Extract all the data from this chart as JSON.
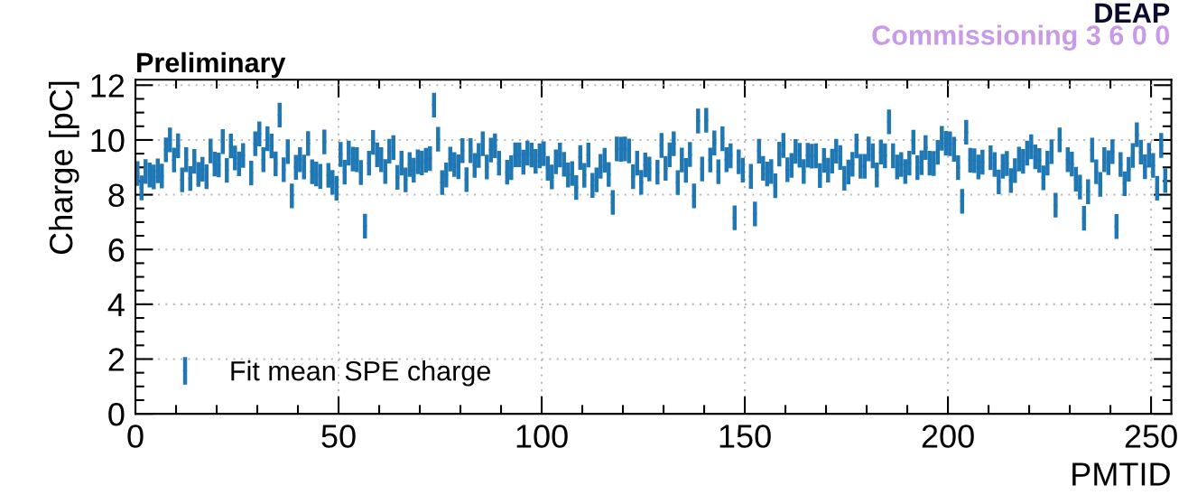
{
  "chart_data": {
    "type": "scatter",
    "title": "Preliminary",
    "xlabel": "PMTID",
    "ylabel": "Charge [pC]",
    "annotations": [
      "DEAP",
      "Commissioning 3 6 0 0"
    ],
    "x": [
      0.5,
      1.5,
      2.5,
      3.5,
      4.5,
      5.5,
      6.5,
      7.5,
      8.5,
      9.5,
      10.5,
      11.5,
      12.5,
      13.5,
      14.5,
      15.5,
      16.5,
      17.5,
      18.5,
      19.5,
      20.5,
      21.5,
      22.5,
      23.5,
      24.5,
      25.5,
      26.5,
      27.5,
      28.5,
      29.5,
      30.5,
      31.5,
      32.5,
      33.5,
      34.5,
      35.5,
      36.5,
      37.5,
      38.5,
      39.5,
      40.5,
      41.5,
      42.5,
      43.5,
      44.5,
      45.5,
      46.5,
      47.5,
      48.5,
      49.5,
      50.5,
      51.5,
      52.5,
      53.5,
      54.5,
      55.5,
      56.5,
      57.5,
      58.5,
      59.5,
      60.5,
      61.5,
      62.5,
      63.5,
      64.5,
      65.5,
      66.5,
      67.5,
      68.5,
      69.5,
      70.5,
      71.5,
      72.5,
      73.5,
      74.5,
      75.5,
      76.5,
      77.5,
      78.5,
      79.5,
      80.5,
      81.5,
      82.5,
      83.5,
      84.5,
      85.5,
      86.5,
      87.5,
      88.5,
      89.5,
      90.5,
      91.5,
      92.5,
      93.5,
      94.5,
      95.5,
      96.5,
      97.5,
      98.5,
      99.5,
      100.5,
      101.5,
      102.5,
      103.5,
      104.5,
      105.5,
      106.5,
      107.5,
      108.5,
      109.5,
      110.5,
      111.5,
      112.5,
      113.5,
      114.5,
      115.5,
      116.5,
      117.5,
      118.5,
      119.5,
      120.5,
      121.5,
      122.5,
      123.5,
      124.5,
      125.5,
      126.5,
      127.5,
      128.5,
      129.5,
      130.5,
      131.5,
      132.5,
      133.5,
      134.5,
      135.5,
      136.5,
      137.5,
      138.5,
      139.5,
      140.5,
      141.5,
      142.5,
      143.5,
      144.5,
      145.5,
      146.5,
      147.5,
      148.5,
      149.5,
      150.5,
      151.5,
      152.5,
      153.5,
      154.5,
      155.5,
      156.5,
      157.5,
      158.5,
      159.5,
      160.5,
      161.5,
      162.5,
      163.5,
      164.5,
      165.5,
      166.5,
      167.5,
      168.5,
      169.5,
      170.5,
      171.5,
      172.5,
      173.5,
      174.5,
      175.5,
      176.5,
      177.5,
      178.5,
      179.5,
      180.5,
      181.5,
      182.5,
      183.5,
      184.5,
      185.5,
      186.5,
      187.5,
      188.5,
      189.5,
      190.5,
      191.5,
      192.5,
      193.5,
      194.5,
      195.5,
      196.5,
      197.5,
      198.5,
      199.5,
      200.5,
      201.5,
      202.5,
      203.5,
      204.5,
      205.5,
      206.5,
      207.5,
      208.5,
      209.5,
      210.5,
      211.5,
      212.5,
      213.5,
      214.5,
      215.5,
      216.5,
      217.5,
      218.5,
      219.5,
      220.5,
      221.5,
      222.5,
      223.5,
      224.5,
      225.5,
      226.5,
      227.5,
      228.5,
      229.5,
      230.5,
      231.5,
      232.5,
      233.5,
      234.5,
      235.5,
      236.5,
      237.5,
      238.5,
      239.5,
      240.5,
      241.5,
      242.5,
      243.5,
      244.5,
      245.5,
      246.5,
      247.5,
      248.5,
      249.5,
      250.5,
      251.5,
      252.5,
      253.5
    ],
    "series": [
      {
        "name": "Fit mean SPE charge",
        "color": "#1f77b4",
        "errors": [
          0.45,
          0.45,
          0.45,
          0.45,
          0.45,
          0.45,
          0.45,
          0.45,
          0.45,
          0.45,
          0.45,
          0.45,
          0.45,
          0.45,
          0.45,
          0.45,
          0.45,
          0.45,
          0.45,
          0.45,
          0.45,
          0.45,
          0.45,
          0.45,
          0.45,
          0.45,
          0.45,
          null,
          0.45,
          0.45,
          0.45,
          0.45,
          0.45,
          0.45,
          0.45,
          0.45,
          0.45,
          0.45,
          0.45,
          0.45,
          0.45,
          0.45,
          0.45,
          0.45,
          0.45,
          0.45,
          0.45,
          0.45,
          0.45,
          0.45,
          0.45,
          0.45,
          0.45,
          0.45,
          0.45,
          0.45,
          0.45,
          0.45,
          0.45,
          0.45,
          0.45,
          0.45,
          0.45,
          0.45,
          0.45,
          0.45,
          0.45,
          0.45,
          0.45,
          0.45,
          0.45,
          0.45,
          0.45,
          0.45,
          0.45,
          0.45,
          0.45,
          0.45,
          0.45,
          0.45,
          0.45,
          0.45,
          0.45,
          0.45,
          0.45,
          0.45,
          0.45,
          0.45,
          0.45,
          0.45,
          null,
          0.45,
          0.45,
          0.45,
          0.45,
          0.45,
          0.45,
          0.45,
          0.45,
          0.45,
          0.45,
          0.45,
          0.45,
          0.45,
          0.45,
          0.45,
          0.45,
          0.45,
          0.45,
          0.45,
          0.45,
          0.45,
          0.45,
          0.45,
          0.45,
          0.45,
          0.45,
          0.45,
          0.45,
          0.45,
          0.45,
          0.45,
          0.45,
          0.45,
          0.45,
          0.45,
          0.45,
          null,
          0.45,
          0.45,
          0.45,
          0.45,
          0.45,
          0.45,
          0.45,
          0.45,
          0.45,
          0.45,
          0.45,
          0.45,
          0.45,
          0.45,
          0.45,
          0.45,
          0.45,
          0.45,
          0.45,
          0.45,
          0.45,
          0.45,
          null,
          0.45,
          0.45,
          0.45,
          0.45,
          0.45,
          0.45,
          0.45,
          0.45,
          0.45,
          0.45,
          0.45,
          0.45,
          0.45,
          0.45,
          0.45,
          0.45,
          0.45,
          0.45,
          0.45,
          0.45,
          0.45,
          0.45,
          0.45,
          0.45,
          0.45,
          0.45,
          0.45,
          0.45,
          0.45,
          0.45,
          0.45,
          0.45,
          0.45,
          0.45,
          0.45,
          0.45,
          0.45,
          0.45,
          0.45,
          0.45,
          0.45,
          0.45,
          0.45,
          0.45,
          0.45,
          0.45,
          0.45,
          0.45,
          0.45,
          0.45,
          0.45,
          0.45,
          0.45,
          0.45,
          0.45,
          0.45,
          0.45,
          0.45,
          null,
          0.45,
          0.45,
          0.45,
          0.45,
          0.45,
          0.45,
          0.45,
          0.45,
          0.45,
          0.45,
          0.45,
          0.45,
          0.45,
          0.45,
          0.45,
          0.45,
          0.45,
          0.45,
          null,
          0.45,
          0.45,
          0.45,
          0.45,
          0.45,
          0.45,
          0.45,
          0.45,
          0.45,
          0.45,
          0.45,
          0.45,
          0.45,
          0.45,
          0.45,
          0.45,
          0.45,
          0.45,
          0.45,
          0.45,
          0.45,
          0.45,
          0.45,
          0.45,
          0.45
        ],
        "values": [
          8.77,
          8.25,
          8.85,
          8.72,
          8.65,
          8.87,
          8.68,
          9.64,
          10.0,
          9.27,
          9.79,
          8.54,
          9.28,
          8.59,
          9.22,
          8.74,
          8.93,
          8.66,
          9.6,
          9.12,
          9.09,
          9.94,
          8.89,
          9.78,
          9.34,
          9.13,
          9.43,
          null,
          8.79,
          9.86,
          10.22,
          9.28,
          10.04,
          9.78,
          9.13,
          10.91,
          8.91,
          9.57,
          7.96,
          9.0,
          9.28,
          9.01,
          9.87,
          8.84,
          8.76,
          8.67,
          9.93,
          8.71,
          8.45,
          8.24,
          9.47,
          8.82,
          9.52,
          9.3,
          9.28,
          8.81,
          6.85,
          9.15,
          9.91,
          9.46,
          9.28,
          8.85,
          9.59,
          9.72,
          8.63,
          9.15,
          8.54,
          9.1,
          8.9,
          9.2,
          9.16,
          9.26,
          9.32,
          11.27,
          10.03,
          8.44,
          8.72,
          9.3,
          9.1,
          9.02,
          9.61,
          8.55,
          9.61,
          9.07,
          9.43,
          9.86,
          9.01,
          9.63,
          9.79,
          9.15,
          null,
          8.82,
          8.99,
          9.46,
          9.46,
          9.19,
          9.52,
          9.45,
          9.22,
          9.42,
          9.5,
          8.96,
          8.65,
          9.2,
          9.45,
          9.11,
          8.72,
          8.77,
          8.26,
          9.36,
          8.71,
          9.45,
          8.34,
          8.54,
          9.04,
          9.26,
          8.74,
          7.72,
          9.67,
          9.66,
          9.67,
          9.6,
          8.66,
          9.15,
          8.45,
          9.09,
          8.94,
          null,
          8.82,
          9.8,
          8.96,
          9.46,
          9.86,
          8.44,
          9.27,
          8.89,
          9.47,
          7.96,
          10.69,
          8.94,
          10.72,
          9.27,
          9.89,
          8.84,
          10.04,
          9.28,
          9.42,
          7.16,
          9.2,
          8.9,
          null,
          8.67,
          7.3,
          9.59,
          8.96,
          8.76,
          8.85,
          8.33,
          9.48,
          9.8,
          8.91,
          9.07,
          9.58,
          9.44,
          8.85,
          9.44,
          9.41,
          9.42,
          8.7,
          9.25,
          8.9,
          9.23,
          9.59,
          9.36,
          8.6,
          8.83,
          9.11,
          9.78,
          9.04,
          9.04,
          9.67,
          9.42,
          8.72,
          9.56,
          9.42,
          10.66,
          9.42,
          9.01,
          9.1,
          8.85,
          9.15,
          9.92,
          8.99,
          9.17,
          9.72,
          9.15,
          9.14,
          9.55,
          10.06,
          9.88,
          9.86,
          9.66,
          8.99,
          7.76,
          10.28,
          9.26,
          9.24,
          9.01,
          9.19,
          null,
          9.35,
          9.1,
          8.47,
          9.04,
          9.14,
          8.52,
          8.88,
          9.3,
          9.22,
          9.52,
          9.75,
          9.38,
          9.25,
          8.62,
          9.15,
          9.57,
          7.62,
          10.0,
          null,
          9.28,
          9.12,
          8.57,
          8.28,
          7.14,
          8.11,
          9.63,
          8.84,
          8.38,
          9.28,
          9.17,
          9.57,
          6.84,
          9.1,
          8.4,
          8.93,
          9.43,
          10.19,
          9.56,
          9.02,
          9.44,
          9.07,
          8.24,
          9.8,
          8.52
        ]
      }
    ],
    "xlim": [
      0,
      255
    ],
    "xticks": [
      0,
      50,
      100,
      150,
      200,
      250
    ],
    "ylim": [
      0,
      12.2
    ],
    "yticks": [
      0,
      2,
      4,
      6,
      8,
      10,
      12
    ],
    "grid": true,
    "legend": "bottom left",
    "marker": "circle"
  }
}
